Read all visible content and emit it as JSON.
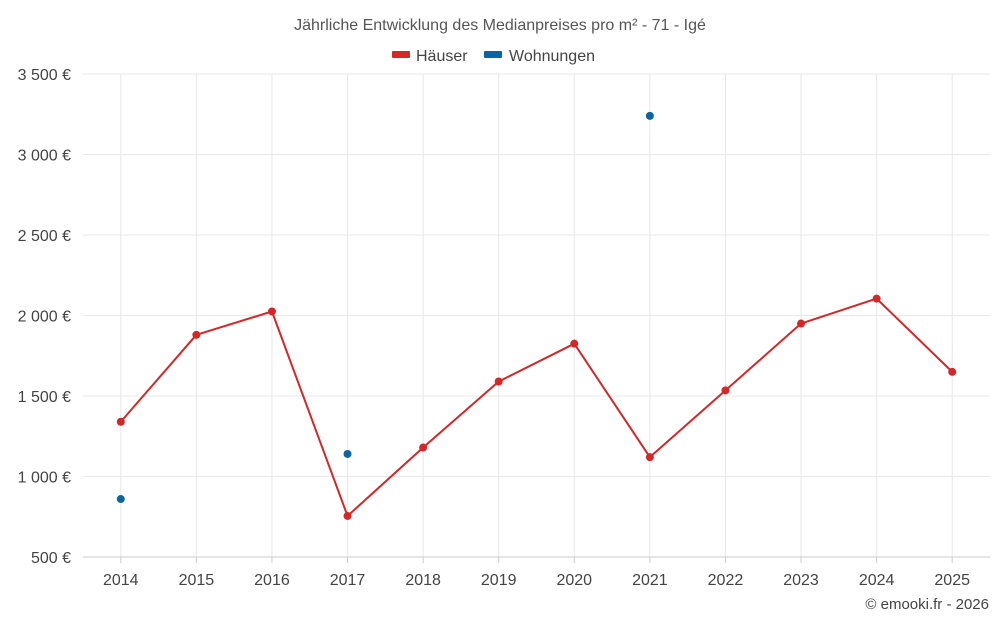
{
  "chart_data": {
    "type": "line",
    "title": "Jährliche Entwicklung des Medianpreises pro m² - 71 - Igé",
    "categories": [
      "2014",
      "2015",
      "2016",
      "2017",
      "2018",
      "2019",
      "2020",
      "2021",
      "2022",
      "2023",
      "2024",
      "2025"
    ],
    "series": [
      {
        "name": "Häuser",
        "color": "#d62728",
        "values": [
          1340,
          1880,
          2025,
          755,
          1180,
          1590,
          1825,
          1120,
          1535,
          1950,
          2105,
          1650
        ]
      },
      {
        "name": "Wohnungen",
        "color": "#0c64a3",
        "values": [
          860,
          null,
          null,
          1140,
          null,
          null,
          null,
          3240,
          null,
          null,
          null,
          null
        ]
      }
    ],
    "ylim": [
      500,
      3500
    ],
    "yticks": [
      {
        "value": 500,
        "label": "500 €"
      },
      {
        "value": 1000,
        "label": "1 000 €"
      },
      {
        "value": 1500,
        "label": "1 500 €"
      },
      {
        "value": 2000,
        "label": "2 000 €"
      },
      {
        "value": 2500,
        "label": "2 500 €"
      },
      {
        "value": 3000,
        "label": "3 000 €"
      },
      {
        "value": 3500,
        "label": "3 500 €"
      }
    ],
    "xlabel": "",
    "ylabel": "",
    "grid": true,
    "legend_position": "top-center"
  },
  "credit": "© emooki.fr - 2026"
}
